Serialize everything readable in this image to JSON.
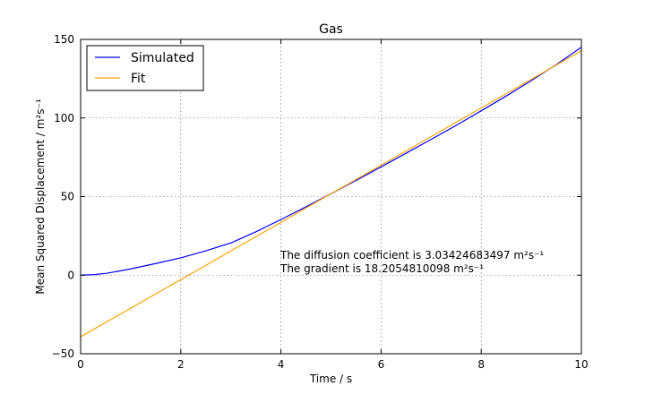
{
  "chart_data": {
    "type": "line",
    "title": "Gas",
    "xlabel": "Time / s",
    "ylabel": "Mean Squared Displacement / m²s⁻¹",
    "xlim": [
      0,
      10
    ],
    "ylim": [
      -50,
      150
    ],
    "x_ticks": [
      0,
      2,
      4,
      6,
      8,
      10
    ],
    "y_ticks": [
      -50,
      0,
      50,
      100,
      150
    ],
    "x_tick_labels": [
      "0",
      "2",
      "4",
      "6",
      "8",
      "10"
    ],
    "y_tick_labels": [
      "−50",
      "0",
      "50",
      "100",
      "150"
    ],
    "grid": true,
    "legend_position": "top-left",
    "series": [
      {
        "name": "Simulated",
        "color": "#0000ff",
        "x": [
          0,
          0.25,
          0.5,
          0.75,
          1,
          1.5,
          2,
          2.5,
          3,
          3.5,
          4,
          4.5,
          5,
          5.5,
          6,
          6.5,
          7,
          7.5,
          8,
          8.5,
          9,
          9.5,
          10
        ],
        "y": [
          0,
          0.3,
          1.1,
          2.5,
          4.0,
          7.4,
          11.0,
          15.5,
          20.5,
          27.6,
          35.4,
          43.5,
          51.8,
          60.3,
          68.9,
          77.6,
          86.4,
          95.3,
          104.6,
          114.0,
          123.8,
          134.0,
          145.0
        ]
      },
      {
        "name": "Fit",
        "color": "#ffa500",
        "x": [
          0,
          10
        ],
        "y": [
          -39.2,
          142.8
        ]
      }
    ],
    "annotations": [
      "The diffusion coefficient is 3.03424683497 m²s⁻¹",
      "The gradient is 18.2054810098 m²s⁻¹"
    ]
  }
}
